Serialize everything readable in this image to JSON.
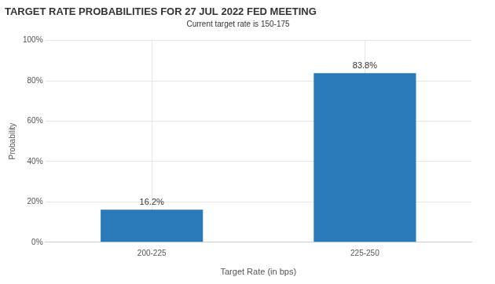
{
  "chart_data": {
    "type": "bar",
    "title": "TARGET RATE PROBABILITIES FOR 27 JUL 2022 FED MEETING",
    "subtitle": "Current target rate is 150-175",
    "x_label": "Target Rate (in bps)",
    "y_label": "Probability",
    "categories": [
      "200-225",
      "225-250"
    ],
    "values": [
      16.2,
      83.8
    ],
    "value_labels": [
      "16.2%",
      "83.8%"
    ],
    "color": "#2a7ab9",
    "ylim": [
      0,
      100
    ],
    "yticks": [
      {
        "value": 0,
        "label": "0%"
      },
      {
        "value": 20,
        "label": "20%"
      },
      {
        "value": 40,
        "label": "40%"
      },
      {
        "value": 60,
        "label": "60%"
      },
      {
        "value": 80,
        "label": "80%"
      },
      {
        "value": 100,
        "label": "100%"
      }
    ],
    "grid": true,
    "data_labels": true
  }
}
